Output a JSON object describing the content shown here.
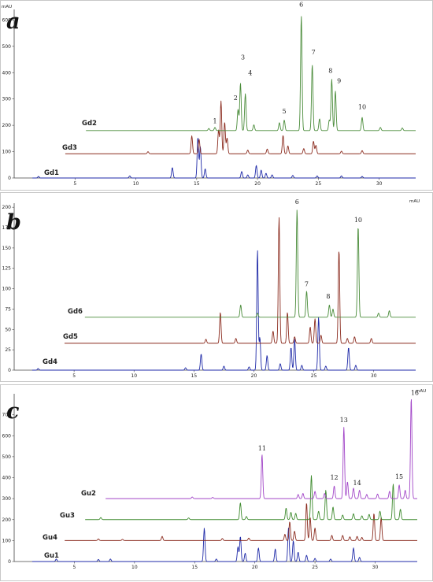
{
  "chart_data": [
    {
      "type": "line",
      "panel": "a",
      "unit": "mAU",
      "ylim": [
        0,
        640
      ],
      "yticks": [
        0,
        100,
        200,
        300,
        400,
        500,
        600
      ],
      "xlim": [
        0,
        33
      ],
      "xticks": [
        5,
        10,
        15,
        20,
        25,
        30
      ],
      "series": [
        {
          "name": "Gd1",
          "color": "#1f2aa8",
          "offset": 0,
          "peaks": [
            [
              2,
              6
            ],
            [
              9.5,
              8
            ],
            [
              13,
              40
            ],
            [
              15.1,
              155
            ],
            [
              15.3,
              120
            ],
            [
              15.7,
              35
            ],
            [
              18.7,
              25
            ],
            [
              19.2,
              12
            ],
            [
              19.9,
              48
            ],
            [
              20.3,
              30
            ],
            [
              20.7,
              18
            ],
            [
              21.2,
              12
            ],
            [
              22.9,
              10
            ],
            [
              24.9,
              8
            ],
            [
              26.9,
              8
            ],
            [
              28.6,
              6
            ]
          ]
        },
        {
          "name": "Gd3",
          "color": "#8b2b1e",
          "offset": 92,
          "peaks": [
            [
              3.5,
              14
            ],
            [
              11,
              8
            ],
            [
              14.6,
              68
            ],
            [
              15.2,
              55
            ],
            [
              16.8,
              90
            ],
            [
              17.0,
              200
            ],
            [
              17.3,
              120
            ],
            [
              17.5,
              60
            ],
            [
              19.2,
              14
            ],
            [
              20.8,
              18
            ],
            [
              22.1,
              70
            ],
            [
              22.5,
              30
            ],
            [
              23.8,
              20
            ],
            [
              24.6,
              48
            ],
            [
              24.8,
              32
            ],
            [
              26.9,
              10
            ],
            [
              28.6,
              12
            ]
          ]
        },
        {
          "name": "Gd2",
          "color": "#4a8c3a",
          "offset": 180,
          "peaks": [
            [
              5,
              8
            ],
            [
              16.0,
              8
            ],
            [
              16.5,
              12
            ],
            [
              18.4,
              80
            ],
            [
              18.6,
              180
            ],
            [
              19.0,
              140
            ],
            [
              19.7,
              22
            ],
            [
              21.8,
              30
            ],
            [
              22.2,
              40
            ],
            [
              23.6,
              435
            ],
            [
              24.5,
              250
            ],
            [
              25.1,
              45
            ],
            [
              25.9,
              40
            ],
            [
              26.1,
              195
            ],
            [
              26.4,
              150
            ],
            [
              28.6,
              50
            ],
            [
              30.1,
              12
            ],
            [
              31.9,
              10
            ]
          ]
        }
      ]
    },
    {
      "type": "line",
      "panel": "b",
      "unit": "mAU",
      "ylim": [
        0,
        205
      ],
      "yticks": [
        0,
        25,
        50,
        75,
        100,
        125,
        150,
        175,
        200
      ],
      "xlim": [
        0,
        33.5
      ],
      "xticks": [
        5,
        10,
        15,
        20,
        25,
        30
      ],
      "series": [
        {
          "name": "Gd4",
          "color": "#1f2aa8",
          "offset": 0,
          "peaks": [
            [
              2,
              2
            ],
            [
              14.3,
              3
            ],
            [
              15.6,
              20
            ],
            [
              17.5,
              5
            ],
            [
              19.6,
              4
            ],
            [
              20.3,
              148
            ],
            [
              20.5,
              40
            ],
            [
              21.1,
              18
            ],
            [
              22.2,
              8
            ],
            [
              23.1,
              28
            ],
            [
              23.4,
              38
            ],
            [
              24.0,
              6
            ],
            [
              25.4,
              65
            ],
            [
              26.0,
              5
            ],
            [
              27.9,
              28
            ],
            [
              28.5,
              6
            ]
          ]
        },
        {
          "name": "Gd5",
          "color": "#8b2b1e",
          "offset": 33,
          "peaks": [
            [
              16.0,
              5
            ],
            [
              17.2,
              38
            ],
            [
              18.5,
              6
            ],
            [
              21.6,
              15
            ],
            [
              22.1,
              155
            ],
            [
              22.8,
              38
            ],
            [
              23.4,
              8
            ],
            [
              24.7,
              20
            ],
            [
              25.1,
              30
            ],
            [
              25.6,
              10
            ],
            [
              27.1,
              115
            ],
            [
              27.8,
              6
            ],
            [
              28.4,
              8
            ],
            [
              29.8,
              6
            ]
          ]
        },
        {
          "name": "Gd6",
          "color": "#4a8c3a",
          "offset": 65,
          "peaks": [
            [
              18.9,
              15
            ],
            [
              20.3,
              5
            ],
            [
              23.6,
              132
            ],
            [
              24.4,
              32
            ],
            [
              26.3,
              15
            ],
            [
              26.6,
              10
            ],
            [
              28.7,
              112
            ],
            [
              30.4,
              5
            ],
            [
              31.3,
              8
            ]
          ]
        }
      ]
    },
    {
      "type": "line",
      "panel": "c",
      "unit": "mAU",
      "ylim": [
        0,
        800
      ],
      "yticks": [
        0,
        100,
        200,
        300,
        400,
        500,
        600,
        700
      ],
      "xlim": [
        0,
        33.5
      ],
      "xticks": [
        5,
        10,
        15,
        20,
        25,
        30
      ],
      "series": [
        {
          "name": "Gu1",
          "color": "#1f2aa8",
          "offset": 0,
          "peaks": [
            [
              3.5,
              12
            ],
            [
              7,
              10
            ],
            [
              8,
              12
            ],
            [
              15.8,
              160
            ],
            [
              16.8,
              12
            ],
            [
              18.6,
              70
            ],
            [
              18.8,
              120
            ],
            [
              19.2,
              40
            ],
            [
              20.3,
              65
            ],
            [
              21.7,
              60
            ],
            [
              22.8,
              160
            ],
            [
              23.2,
              100
            ],
            [
              23.6,
              45
            ],
            [
              24.3,
              30
            ],
            [
              25.0,
              15
            ],
            [
              26.3,
              12
            ],
            [
              28.2,
              65
            ],
            [
              28.7,
              20
            ]
          ]
        },
        {
          "name": "Gu4",
          "color": "#8b2b1e",
          "offset": 100,
          "peaks": [
            [
              7,
              8
            ],
            [
              9,
              6
            ],
            [
              12.3,
              20
            ],
            [
              17.3,
              10
            ],
            [
              19.5,
              12
            ],
            [
              22.5,
              30
            ],
            [
              22.9,
              90
            ],
            [
              23.3,
              45
            ],
            [
              24.3,
              180
            ],
            [
              24.6,
              110
            ],
            [
              25.0,
              60
            ],
            [
              26.4,
              25
            ],
            [
              27.3,
              25
            ],
            [
              27.9,
              18
            ],
            [
              28.5,
              20
            ],
            [
              28.9,
              15
            ],
            [
              29.9,
              130
            ],
            [
              30.5,
              110
            ]
          ]
        },
        {
          "name": "Gu3",
          "color": "#3d8a2d",
          "offset": 200,
          "peaks": [
            [
              5,
              8
            ],
            [
              7.2,
              10
            ],
            [
              14.5,
              8
            ],
            [
              18.8,
              80
            ],
            [
              19.3,
              15
            ],
            [
              22.6,
              55
            ],
            [
              23.0,
              35
            ],
            [
              23.4,
              30
            ],
            [
              24.7,
              210
            ],
            [
              25.3,
              40
            ],
            [
              25.9,
              140
            ],
            [
              26.5,
              60
            ],
            [
              27.3,
              22
            ],
            [
              28.2,
              28
            ],
            [
              28.9,
              18
            ],
            [
              29.5,
              25
            ],
            [
              30.4,
              40
            ],
            [
              31.5,
              170
            ],
            [
              32.1,
              50
            ]
          ]
        },
        {
          "name": "Gu2",
          "color": "#a246c8",
          "offset": 300,
          "peaks": [
            [
              6.8,
              10
            ],
            [
              14.8,
              8
            ],
            [
              16.5,
              6
            ],
            [
              20.6,
              210
            ],
            [
              23.6,
              20
            ],
            [
              24.0,
              25
            ],
            [
              25.0,
              35
            ],
            [
              25.8,
              25
            ],
            [
              26.6,
              60
            ],
            [
              27.4,
              340
            ],
            [
              27.7,
              80
            ],
            [
              28.2,
              50
            ],
            [
              28.7,
              40
            ],
            [
              29.3,
              20
            ],
            [
              30.2,
              22
            ],
            [
              31.2,
              35
            ],
            [
              32.0,
              65
            ],
            [
              32.5,
              40
            ],
            [
              33.0,
              480
            ]
          ]
        }
      ]
    }
  ],
  "panels": [
    {
      "letter": "a",
      "unit": "mAU",
      "trace_labels": [
        "Gd1",
        "Gd3",
        "Gd2"
      ],
      "peak_labels": [
        {
          "text": "1",
          "x": 16.5,
          "y": 208
        },
        {
          "text": "2",
          "x": 18.2,
          "y": 296
        },
        {
          "text": "3",
          "x": 18.8,
          "y": 450
        },
        {
          "text": "4",
          "x": 19.4,
          "y": 390
        },
        {
          "text": "5",
          "x": 22.2,
          "y": 245
        },
        {
          "text": "6",
          "x": 23.6,
          "y": 650
        },
        {
          "text": "7",
          "x": 24.6,
          "y": 470
        },
        {
          "text": "8",
          "x": 26.0,
          "y": 400
        },
        {
          "text": "9",
          "x": 26.7,
          "y": 360
        },
        {
          "text": "10",
          "x": 28.6,
          "y": 262
        }
      ]
    },
    {
      "letter": "b",
      "unit": "mAU",
      "trace_labels": [
        "Gd4",
        "Gd5",
        "Gd6"
      ],
      "peak_labels": [
        {
          "text": "6",
          "x": 23.6,
          "y": 204
        },
        {
          "text": "7",
          "x": 24.4,
          "y": 103
        },
        {
          "text": "8",
          "x": 26.2,
          "y": 88
        },
        {
          "text": "10",
          "x": 28.7,
          "y": 182
        }
      ]
    },
    {
      "letter": "c",
      "unit": "mAU",
      "trace_labels": [
        "Gu1",
        "Gu4",
        "Gu3",
        "Gu2"
      ],
      "peak_labels": [
        {
          "text": "11",
          "x": 20.6,
          "y": 530
        },
        {
          "text": "12",
          "x": 26.6,
          "y": 390
        },
        {
          "text": "13",
          "x": 27.4,
          "y": 665
        },
        {
          "text": "14",
          "x": 28.5,
          "y": 365
        },
        {
          "text": "15",
          "x": 32.0,
          "y": 395
        },
        {
          "text": "16",
          "x": 33.3,
          "y": 795
        }
      ]
    }
  ]
}
